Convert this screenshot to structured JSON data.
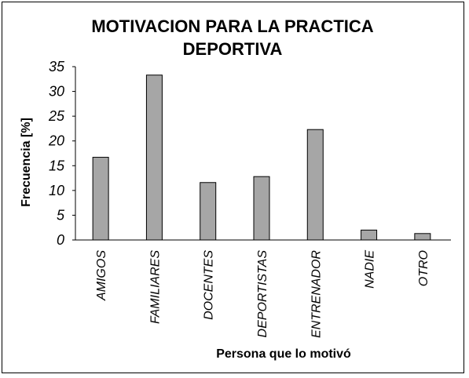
{
  "chart_data": {
    "type": "bar",
    "title_lines": [
      "MOTIVACION PARA LA PRACTICA",
      "DEPORTIVA"
    ],
    "xlabel": "Persona que lo motivó",
    "ylabel": "Frecuencia [%]",
    "ylim": [
      0,
      35
    ],
    "yticks": [
      "0",
      "5",
      "10",
      "15",
      "20",
      "25",
      "30",
      "35"
    ],
    "categories": [
      "AMIGOS",
      "FAMILIARES",
      "DOCENTES",
      "DEPORTISTAS",
      "ENTRENADOR",
      "NADIE",
      "OTRO"
    ],
    "values": [
      16.7,
      33.3,
      11.6,
      12.8,
      22.3,
      2.0,
      1.3
    ],
    "grid": false,
    "legend": "none",
    "bar_color": "#a6a6a6",
    "bar_edge_color": "#000000"
  }
}
